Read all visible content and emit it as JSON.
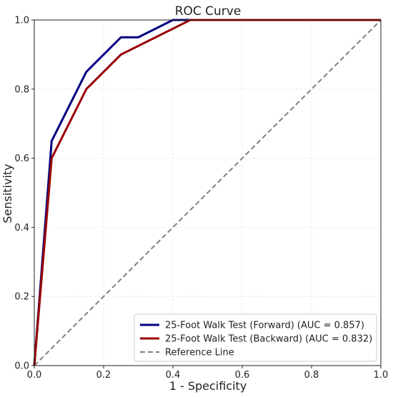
{
  "chart_data": {
    "type": "line",
    "title": "ROC Curve",
    "xlabel": "1 - Specificity",
    "ylabel": "Sensitivity",
    "xlim": [
      0,
      1
    ],
    "ylim": [
      0,
      1
    ],
    "xticks": [
      "0.0",
      "0.2",
      "0.4",
      "0.6",
      "0.8",
      "1.0"
    ],
    "yticks": [
      "0.0",
      "0.2",
      "0.4",
      "0.6",
      "0.8",
      "1.0"
    ],
    "grid": true,
    "legend_position": "bottom-right",
    "series": [
      {
        "name": "25-Foot Walk Test (Forward) (AUC = 0.857)",
        "color": "#000080",
        "style": "solid",
        "x": [
          0,
          0.05,
          0.15,
          0.25,
          0.3,
          0.4,
          1.0
        ],
        "y": [
          0,
          0.65,
          0.85,
          0.95,
          0.95,
          1.0,
          1.0
        ]
      },
      {
        "name": "25-Foot Walk Test (Backward) (AUC = 0.832)",
        "color": "#990000",
        "style": "solid",
        "x": [
          0,
          0.05,
          0.15,
          0.25,
          0.45,
          1.0
        ],
        "y": [
          0,
          0.6,
          0.8,
          0.9,
          1.0,
          1.0
        ]
      },
      {
        "name": "Reference Line",
        "color": "#808080",
        "style": "dashed",
        "x": [
          0,
          1
        ],
        "y": [
          0,
          1
        ]
      }
    ]
  }
}
